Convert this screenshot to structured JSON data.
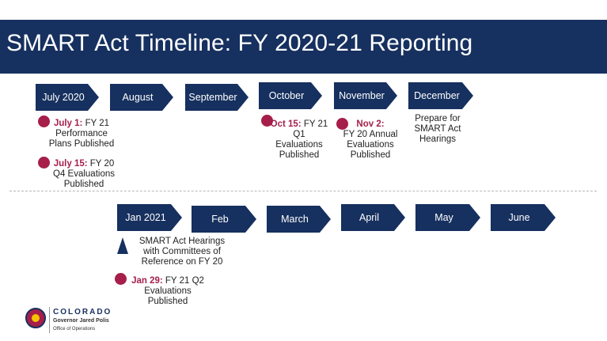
{
  "title": "SMART Act Timeline: FY 2020-21 Reporting",
  "row1": {
    "months": [
      "July 2020",
      "August",
      "September",
      "October",
      "November",
      "December"
    ],
    "events": [
      {
        "highlight": "July 1:",
        "text": " FY 21 Performance Plans Published"
      },
      {
        "highlight": "July 15:",
        "text": " FY 20 Q4 Evaluations Published"
      },
      {
        "highlight": "Oct 15:",
        "text": " FY 21 Q1 Evaluations Published"
      },
      {
        "highlight": "Nov 2:",
        "text": "FY 20 Annual Evaluations Published"
      },
      {
        "highlight": "",
        "text": "Prepare for SMART Act Hearings"
      }
    ]
  },
  "row2": {
    "months": [
      "Jan 2021",
      "Feb",
      "March",
      "April",
      "May",
      "June"
    ],
    "events": [
      {
        "highlight": "",
        "text": "SMART Act Hearings with Committees of Reference on FY 20"
      },
      {
        "highlight": "Jan 29:",
        "text": " FY 21 Q2 Evaluations Published"
      }
    ]
  },
  "logo": {
    "state": "COLORADO",
    "governor": "Governor Jared Polis",
    "office": "Office of Operations"
  },
  "colors": {
    "navy": "#16305f",
    "maroon": "#a51f4a"
  },
  "icons": {
    "event_marker": "dot",
    "hearing_marker": "triangle",
    "seal": "colorado-state-seal"
  }
}
